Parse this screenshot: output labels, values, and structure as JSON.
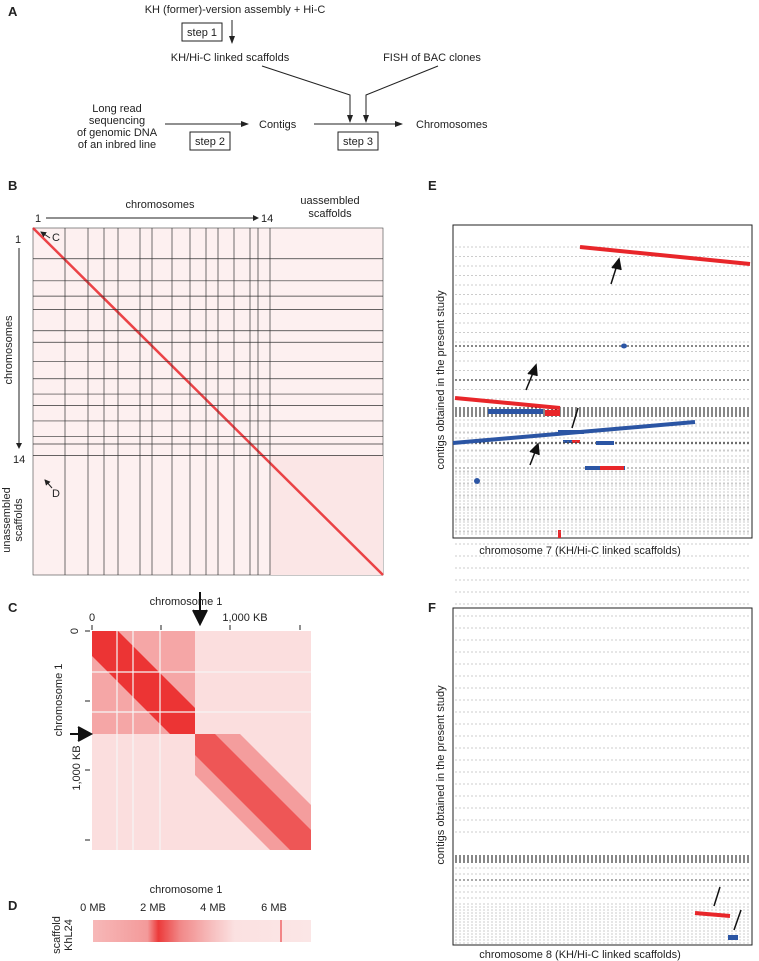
{
  "panel_a": {
    "label": "A",
    "top": "KH (former)-version assembly + Hi-C",
    "step1": "step 1",
    "linked": "KH/Hi-C linked scaffolds",
    "fish": "FISH of BAC clones",
    "long_read": [
      "Long read",
      "sequencing",
      "of genomic DNA",
      "of an inbred line"
    ],
    "step2": "step 2",
    "contigs": "Contigs",
    "step3": "step 3",
    "chromosomes": "Chromosomes"
  },
  "panel_b": {
    "label": "B",
    "chromosomes": "chromosomes",
    "start": "1",
    "end": "14",
    "unassembled_top": [
      "uassembled",
      "scaffolds"
    ],
    "left_start": "1",
    "left_end": "14",
    "left_chromosomes": "chromosomes",
    "left_unassembled": [
      "unassembled",
      "scaffolds"
    ],
    "marker_c": "C",
    "marker_d": "D"
  },
  "panel_c": {
    "label": "C",
    "title": "chromosome 1",
    "x_ticks": [
      "0",
      "1,000 KB"
    ],
    "y_ticks": [
      "0",
      "1,000 KB"
    ],
    "y_label": "chromosome 1"
  },
  "panel_d": {
    "label": "D",
    "title": "chromosome 1",
    "x_ticks": [
      "0 MB",
      "2 MB",
      "4 MB",
      "6 MB"
    ],
    "y_label": [
      "scaffold",
      "KhL24"
    ]
  },
  "panel_e": {
    "label": "E",
    "y_label": "contigs obtained in the present study",
    "x_label": "chromosome 7 (KH/Hi-C linked scaffolds)"
  },
  "panel_f": {
    "label": "F",
    "y_label": "contigs obtained in the present study",
    "x_label": "chromosome 8 (KH/Hi-C linked scaffolds)"
  },
  "colors": {
    "red": "#e8262a",
    "blue": "#2b55a4",
    "light_red": "#fbe3e3"
  }
}
